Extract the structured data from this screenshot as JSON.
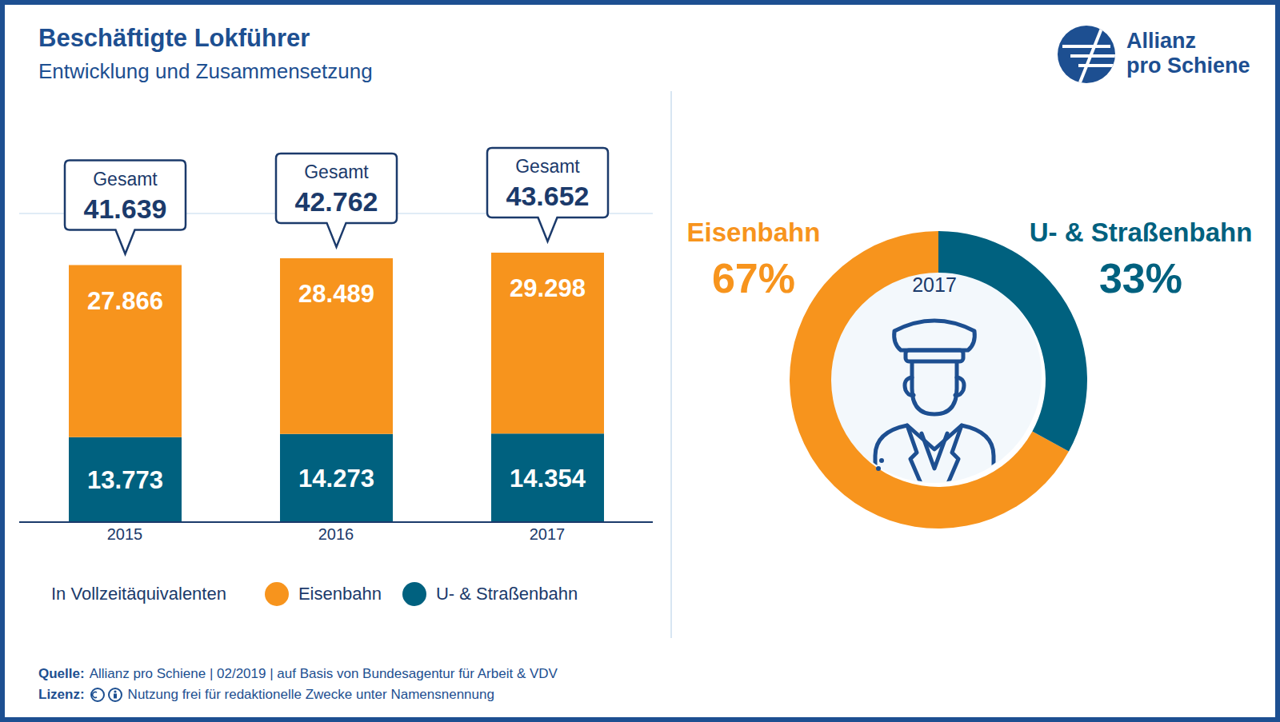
{
  "title": "Beschäftigte Lokführer",
  "subtitle": "Entwicklung und Zusammensetzung",
  "logo": [
    "Allianz",
    "pro Schiene"
  ],
  "footer": [
    {
      "label": "Quelle:",
      "text": "Allianz pro Schiene | 02/2019 | auf Basis von Bundesagentur für Arbeit & VDV"
    },
    {
      "label": "Lizenz:",
      "text": "Nutzung frei für redaktionelle Zwecke unter Namensnennung"
    }
  ],
  "chart_data": [
    {
      "type": "bar",
      "stacked": true,
      "categories": [
        "2015",
        "2016",
        "2017"
      ],
      "series": [
        {
          "name": "Eisenbahn",
          "color": "#f7941d",
          "values": [
            27866,
            28489,
            29298
          ],
          "value_labels": [
            "27.866",
            "28.489",
            "29.298"
          ]
        },
        {
          "name": "U- & Straßenbahn",
          "color": "#00617f",
          "values": [
            13773,
            14273,
            14354
          ],
          "value_labels": [
            "13.773",
            "14.273",
            "14.354"
          ]
        }
      ],
      "annotations": [
        {
          "category": "2015",
          "label": "Gesamt",
          "value": 41639,
          "value_label": "41.639"
        },
        {
          "category": "2016",
          "label": "Gesamt",
          "value": 42762,
          "value_label": "42.762"
        },
        {
          "category": "2017",
          "label": "Gesamt",
          "value": 43652,
          "value_label": "43.652"
        }
      ],
      "y_label": "In Vollzeitäquivalenten",
      "ylim": [
        0,
        50000
      ],
      "yticks": [
        0,
        10000,
        20000,
        30000,
        40000,
        50000
      ],
      "grid": true,
      "tick_labels": "x",
      "data_labels": true,
      "legend": "bottom-left"
    },
    {
      "type": "pie",
      "categories": [
        "Eisenbahn",
        "U- & Straßenbahn"
      ],
      "values": [
        67,
        33
      ],
      "value_labels": [
        "67%",
        "33%"
      ],
      "colors": [
        "#f7941d",
        "#00617f"
      ],
      "center_label": "2017",
      "data_labels": true
    }
  ]
}
